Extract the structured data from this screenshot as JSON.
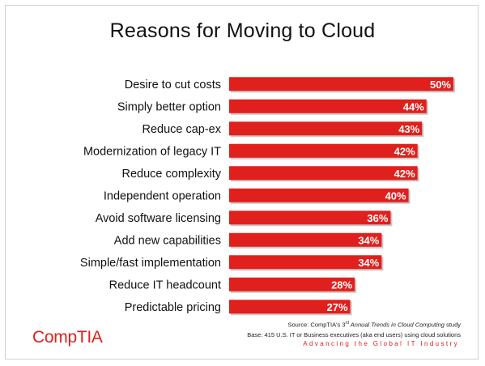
{
  "title": "Reasons for Moving to Cloud",
  "chart_data": {
    "type": "bar",
    "orientation": "horizontal",
    "title": "Reasons for Moving to Cloud",
    "categories": [
      "Desire to cut costs",
      "Simply better option",
      "Reduce cap-ex",
      "Modernization of legacy IT",
      "Reduce complexity",
      "Independent operation",
      "Avoid software licensing",
      "Add new capabilities",
      "Simple/fast implementation",
      "Reduce IT headcount",
      "Predictable pricing"
    ],
    "values": [
      50,
      44,
      43,
      42,
      42,
      40,
      36,
      34,
      34,
      28,
      27
    ],
    "data_labels": [
      "50%",
      "44%",
      "43%",
      "42%",
      "42%",
      "40%",
      "36%",
      "34%",
      "34%",
      "28%",
      "27%"
    ],
    "xlim": [
      0,
      50
    ],
    "grid": false,
    "bar_color": "#e0201c"
  },
  "source": {
    "line1_prefix": "Source: CompTIA's 3",
    "line1_sup": "rd",
    "line1_mid": " Annual Trends in Cloud Computing",
    "line1_suffix": " study",
    "line2": "Base: 415 U.S. IT or Business executives (aka end users) using cloud solutions"
  },
  "tagline": "Advancing the Global IT Industry",
  "logo": "CompTIA",
  "colors": {
    "accent": "#e0201c",
    "text": "#111111"
  }
}
